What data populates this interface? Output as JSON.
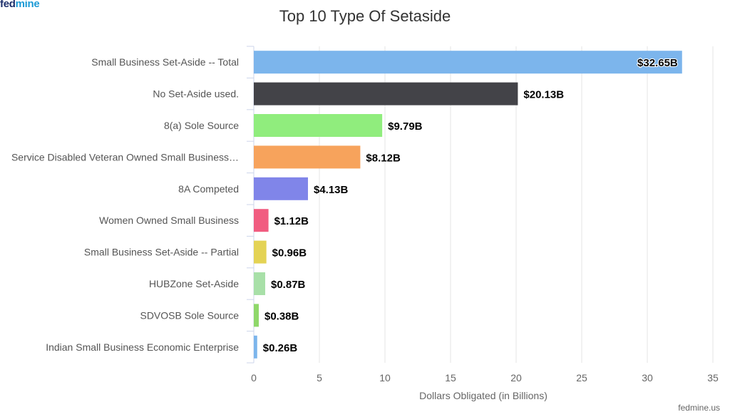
{
  "brand": {
    "logo_part1": "fed",
    "logo_part2": "mine",
    "credit": "fedmine.us"
  },
  "colors": {
    "logo_dark": "#1d2f6b",
    "logo_light": "#1b9ad6"
  },
  "chart_data": {
    "type": "bar",
    "orientation": "horizontal",
    "title": "Top 10 Type Of Setaside",
    "xlabel": "Dollars Obligated (in Billions)",
    "ylabel": "",
    "xlim": [
      0,
      35
    ],
    "xticks": [
      "0",
      "5",
      "10",
      "15",
      "20",
      "25",
      "30",
      "35"
    ],
    "grid": "vertical",
    "legend": "none",
    "categories": [
      "Small Business Set-Aside -- Total",
      "No Set-Aside used.",
      "8(a) Sole Source",
      "Service Disabled Veteran Owned Small Business…",
      "8A Competed",
      "Women Owned Small Business",
      "Small Business Set-Aside -- Partial",
      "HUBZone Set-Aside",
      "SDVOSB Sole Source",
      "Indian Small Business Economic Enterprise"
    ],
    "values": [
      32.65,
      20.13,
      9.79,
      8.12,
      4.13,
      1.12,
      0.96,
      0.87,
      0.38,
      0.26
    ],
    "data_labels": [
      "$32.65B",
      "$20.13B",
      "$9.79B",
      "$8.12B",
      "$4.13B",
      "$1.12B",
      "$0.96B",
      "$0.87B",
      "$0.38B",
      "$0.26B"
    ],
    "colors": [
      "#7cb5ec",
      "#434348",
      "#90ed7d",
      "#f7a35c",
      "#8085e9",
      "#f15c80",
      "#e4d354",
      "#a8e0a8",
      "#8fd86a",
      "#7cb5ec"
    ]
  }
}
